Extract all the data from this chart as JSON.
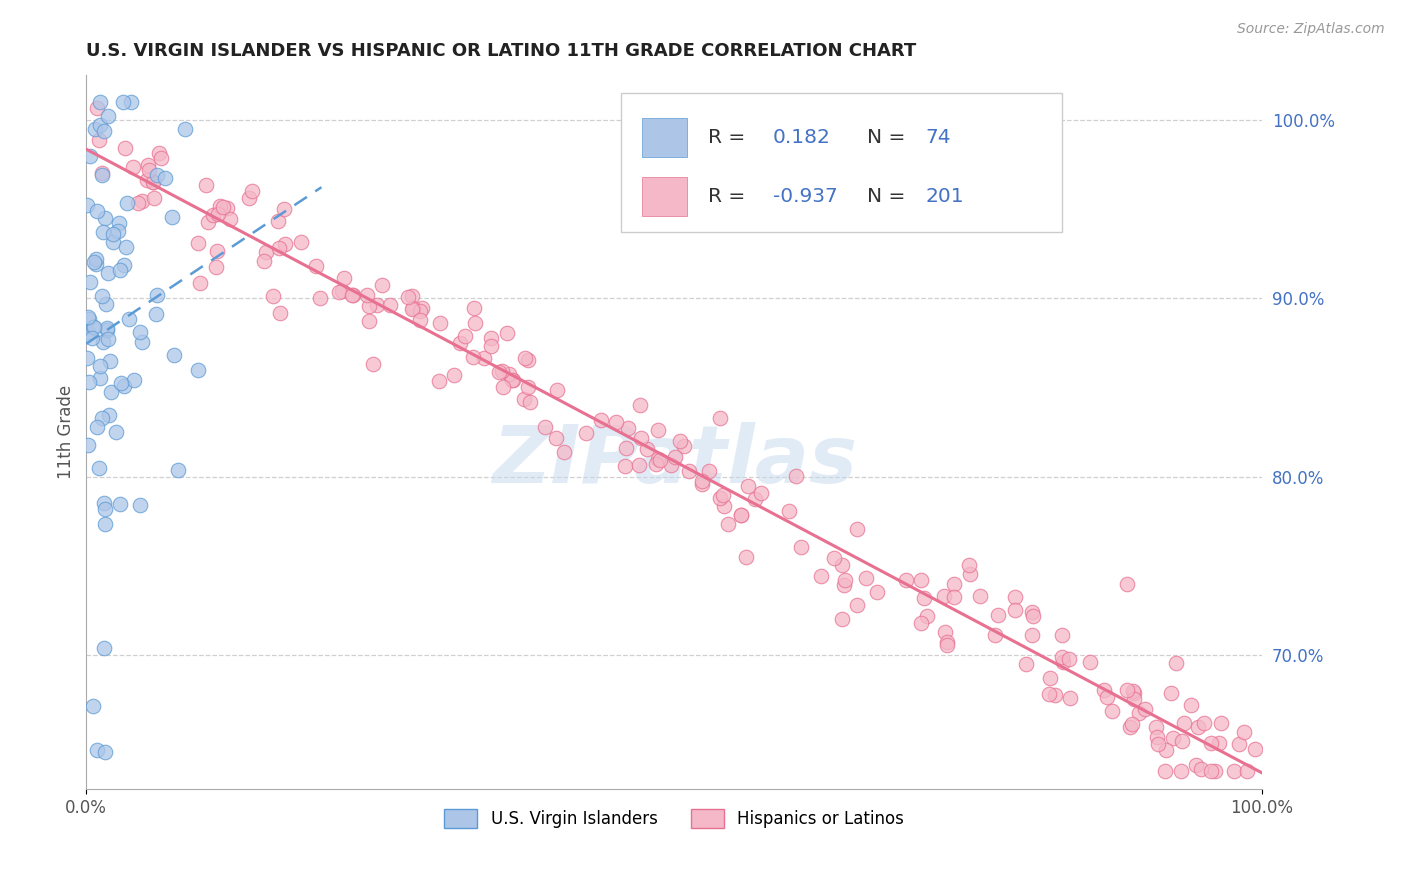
{
  "title": "U.S. VIRGIN ISLANDER VS HISPANIC OR LATINO 11TH GRADE CORRELATION CHART",
  "source": "Source: ZipAtlas.com",
  "ylabel": "11th Grade",
  "xlim": [
    0.0,
    1.0
  ],
  "ylim": [
    0.625,
    1.025
  ],
  "y_tick_positions_right": [
    1.0,
    0.9,
    0.8,
    0.7
  ],
  "y_tick_labels_right": [
    "100.0%",
    "90.0%",
    "80.0%",
    "70.0%"
  ],
  "legend_r1": "0.182",
  "legend_n1": "74",
  "legend_r2": "-0.937",
  "legend_n2": "201",
  "blue_fill": "#adc6e8",
  "blue_edge": "#5b9bd5",
  "blue_line": "#5b9bd5",
  "blue_line_dash": [
    6,
    4
  ],
  "pink_fill": "#f4b8c8",
  "pink_edge": "#e87090",
  "pink_line": "#e87090",
  "legend_value_color": "#4472c4",
  "legend_label_color": "#333333",
  "watermark_color": "#c5d8ee",
  "watermark_alpha": 0.5,
  "background_color": "#ffffff",
  "grid_color": "#d0d0d0",
  "title_color": "#222222",
  "right_label_color": "#4472c4",
  "axis_color": "#aaaaaa",
  "scatter_size": 110,
  "scatter_alpha": 0.75
}
